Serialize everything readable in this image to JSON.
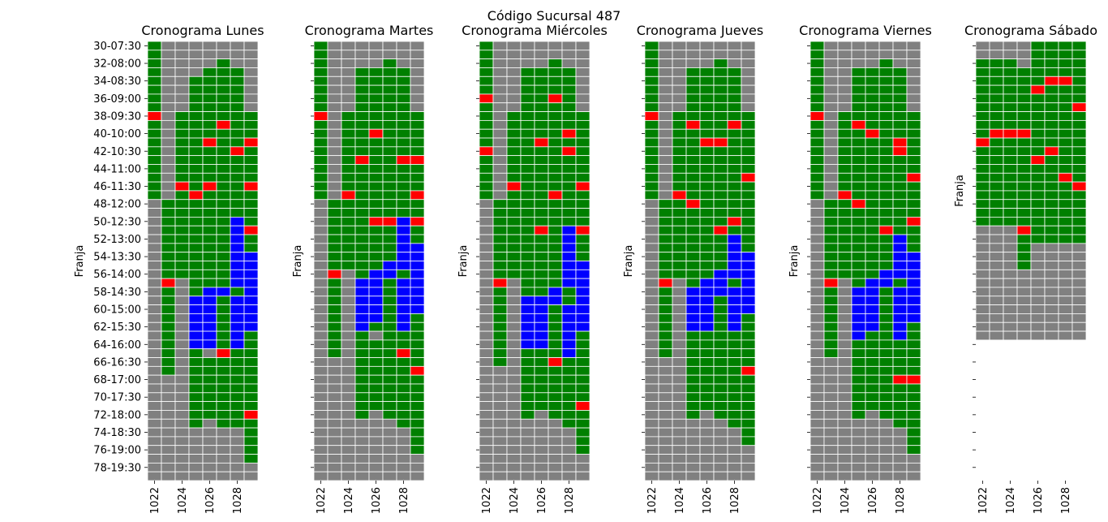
{
  "figure_title": "Código Sucursal 487",
  "chart_data": {
    "type": "heatmap",
    "suptitle": "Código Sucursal 487",
    "xlabel": "Empleado",
    "ylabel": "Franja",
    "employees": [
      1022,
      1023,
      1024,
      1025,
      1026,
      1027,
      1028,
      1029
    ],
    "x_tick_labels": [
      "1022",
      "1024",
      "1026",
      "1028"
    ],
    "y_tick_labels": [
      "30-07:30",
      "32-08:00",
      "34-08:30",
      "36-09:00",
      "38-09:30",
      "40-10:00",
      "42-10:30",
      "44-11:00",
      "46-11:30",
      "48-12:00",
      "50-12:30",
      "52-13:00",
      "54-13:30",
      "56-14:00",
      "58-14:30",
      "60-15:00",
      "62-15:30",
      "64-16:00",
      "66-16:30",
      "68-17:00",
      "70-17:30",
      "72-18:00",
      "74-18:30",
      "76-19:00",
      "78-19:30"
    ],
    "slots_start": 30,
    "slots_end": 79,
    "color_codes": {
      "G": "gray",
      "W": "green",
      "R": "red",
      "B": "blue"
    },
    "colors": {
      "G": "#808080",
      "W": "#008000",
      "R": "#ff0000",
      "B": "#0000ff"
    },
    "legend": "none",
    "panels": [
      {
        "title": "Cronograma Lunes",
        "grid": [
          "WGGGGGGG",
          "WGGGGGGG",
          "WGGGGWGG",
          "WGGGWWWG",
          "WGGWWWWG",
          "WGGWWWWG",
          "WGGWWWWG",
          "WGGWWWWG",
          "RGWWWWWW",
          "WGWWWRWW",
          "WGWWWWWW",
          "WGWWRWWR",
          "WGWWWWRW",
          "WGWWWWWW",
          "WGWWWWWW",
          "WGWWWWWW",
          "WGRWRWWR",
          "WGWRWWWW",
          "GWWWWWWW",
          "GWWWWWWW",
          "GWWWWWBW",
          "GWWWWWBR",
          "GWWWWWBW",
          "GWWWWWBW",
          "GWWWWWBB",
          "GWWWWWBB",
          "GWWWWWBB",
          "GRGWWWBB",
          "GWGWBBWB",
          "GWGBBWBB",
          "GWGBBWBB",
          "GWGBBWBB",
          "GWGBBWBB",
          "GWGBBWBW",
          "GWGBBWBW",
          "GWGWGRWW",
          "GWGWWWWW",
          "GWGWWWWW",
          "GGGWWWWW",
          "GGGWWWWW",
          "GGGWWWWW",
          "GGGWWWWW",
          "GGGWWWWR",
          "GGGWGWWW",
          "GGGGGGGW",
          "GGGGGGGW",
          "GGGGGGGW",
          "GGGGGGGW",
          "GGGGGGGG",
          "GGGGGGGG"
        ]
      },
      {
        "title": "Cronograma Martes",
        "grid": [
          "WGGGGGGG",
          "WGGGGGGG",
          "WGGGGWGG",
          "WGGWWWWG",
          "WGGWWWWG",
          "WGGWWWWG",
          "WGGWWWWG",
          "WGGWWWWG",
          "RGWWWWWW",
          "WGWWWWWW",
          "WGWWRWWW",
          "WGWWWWWW",
          "WGWWWWWW",
          "WGWRWWRR",
          "WGWWWWWW",
          "WGWWWWWW",
          "WGWWWWWW",
          "WGRWWWWR",
          "GWWWWWWW",
          "GWWWWWWW",
          "GWWWRRBR",
          "GWWWWWBW",
          "GWWWWWBW",
          "GWWWWWBB",
          "GWWWWWBB",
          "GWWWWBBB",
          "GRGWBBWB",
          "GWGBBWBB",
          "GWGBBWBB",
          "GWGBBWBB",
          "GWGBBWBB",
          "GWGBBWBW",
          "GWGBWWBW",
          "GWGWGWWW",
          "GWGWWWWW",
          "GWGWWWRW",
          "GGGWWWWW",
          "GGGWWWWR",
          "GGGWWWWW",
          "GGGWWWWW",
          "GGGWWWWW",
          "GGGWWWWW",
          "GGGWGWWW",
          "GGGGGGWW",
          "GGGGGGGW",
          "GGGGGGGW",
          "GGGGGGGW",
          "GGGGGGGG",
          "GGGGGGGG",
          "GGGGGGGG"
        ]
      },
      {
        "title": "Cronograma Miércoles",
        "grid": [
          "WGGGGGGG",
          "WGGGGGGG",
          "WGGGGWGG",
          "WGGWWWWG",
          "WGGWWWWG",
          "WGGWWWWG",
          "RGGWWRWG",
          "WGGWWWWG",
          "WGWWWWWW",
          "WGWWWWWW",
          "WGWWWWRW",
          "WGWWRWWW",
          "RGWWWWRW",
          "WGWWWWWW",
          "WGWWWWWW",
          "WGWWWWWW",
          "WGRWWWWR",
          "WGWWWRWW",
          "GWWWWWWW",
          "GWWWWWWW",
          "GWWWWWWW",
          "GWWWRWBR",
          "GWWWWWBW",
          "GWWWWWBW",
          "GWWWWWBW",
          "GWWWWWBB",
          "GWWWWWBB",
          "GRGWWWBB",
          "GWGWWBWB",
          "GWGBBBWB",
          "GWGBBWBB",
          "GWGBBWBB",
          "GWGBBWBB",
          "GWGBBWBW",
          "GWGBBWBW",
          "GWGWWWBW",
          "GWGWWRWW",
          "GGGWWWWW",
          "GGGWWWWW",
          "GGGWWWWW",
          "GGGWWWWW",
          "GGGWWWWR",
          "GGGWGWWW",
          "GGGGGGWW",
          "GGGGGGGW",
          "GGGGGGGW",
          "GGGGGGGW",
          "GGGGGGGG",
          "GGGGGGGG",
          "GGGGGGGG"
        ]
      },
      {
        "title": "Cronograma Jueves",
        "grid": [
          "WGGGGGGG",
          "WGGGGGGG",
          "WGGGGWGG",
          "WGGWWWWG",
          "WGGWWWWG",
          "WGGWWWWG",
          "WGGWWWWG",
          "WGGWWWWG",
          "RGWWWWWW",
          "WGWRWWRW",
          "WGWWWWWW",
          "WGWWRRWW",
          "WGWWWWWW",
          "WGWWWWWW",
          "WGWWWWWW",
          "WGWWWWWR",
          "WGWWWWWW",
          "WGRWWWWW",
          "GWWRWWWW",
          "GWWWWWWW",
          "GWWWWWRW",
          "GWWWWRWW",
          "GWWWWWBW",
          "GWWWWWBW",
          "GWWWWWBB",
          "GWWWWWBB",
          "GWWWWBBB",
          "GRGWBBWB",
          "GWGBBBBB",
          "GWGBBWBB",
          "GWGBBWBB",
          "GWGBBWBW",
          "GWGBBWBW",
          "GWGWWWWW",
          "GWGWWWWW",
          "GWGWWWWW",
          "GGGWWWWW",
          "GGGWWWWR",
          "GGGWWWWW",
          "GGGWWWWW",
          "GGGWWWWW",
          "GGGWWWWW",
          "GGGWGWWW",
          "GGGGGGWW",
          "GGGGGGGW",
          "GGGGGGGW",
          "GGGGGGGG",
          "GGGGGGGG",
          "GGGGGGGG",
          "GGGGGGGG"
        ]
      },
      {
        "title": "Cronograma Viernes",
        "grid": [
          "WGGGGGGG",
          "WGGGGGGG",
          "WGGGGWGG",
          "WGGWWWWG",
          "WGGWWWWG",
          "WGGWWWWG",
          "WGGWWWWG",
          "WGGWWWWG",
          "RGWWWWWW",
          "WGWRWWWW",
          "WGWWRWWW",
          "WGWWWWRW",
          "WGWWWWRW",
          "WGWWWWWW",
          "WGWWWWWW",
          "WGWWWWWR",
          "WGWWWWWW",
          "WGRWWWWW",
          "GWWRWWWW",
          "GWWWWWWW",
          "GWWWWWWR",
          "GWWWWRWW",
          "GWWWWWBW",
          "GWWWWWBW",
          "GWWWWWBB",
          "GWWWWWBB",
          "GWWWWBBB",
          "GRGWBBWB",
          "GWGBBWBB",
          "GWGBBWBB",
          "GWGBBWBB",
          "GWGBBWBB",
          "GWGBBWBW",
          "GWGBWWBW",
          "GWGWWWWW",
          "GWGWWWWW",
          "GGGWWWWW",
          "GGGWWWWW",
          "GGGWWWRR",
          "GGGWWWWW",
          "GGGWWWWW",
          "GGGWWWWW",
          "GGGWGWWW",
          "GGGGGGWW",
          "GGGGGGGW",
          "GGGGGGGW",
          "GGGGGGGW",
          "GGGGGGGG",
          "GGGGGGGG",
          "GGGGGGGG"
        ]
      },
      {
        "title": "Cronograma Sábado",
        "grid": [
          "GGGGWWWW",
          "GGGGWWWW",
          "WWWGWWWW",
          "WWWWWWWW",
          "WWWWWRRW",
          "WWWWRWWW",
          "WWWWWWWW",
          "WWWWWWWR",
          "WWWWWWWW",
          "WWWWWWWW",
          "WRRRWWWW",
          "RWWWWWWW",
          "WWWWWRWW",
          "WWWWRWWW",
          "WWWWWWWW",
          "WWWWWWRW",
          "WWWWWWWR",
          "WWWWWWWW",
          "WWWWWWWW",
          "WWWWWWWW",
          "WWWWWWWW",
          "GGGRWWWW",
          "GGGWWWWW",
          "GGGWGGGG",
          "GGGWGGGG",
          "GGGWGGGG",
          "GGGGGGGG",
          "GGGGGGGG",
          "GGGGGGGG",
          "GGGGGGGG",
          "GGGGGGGG",
          "GGGGGGGG",
          "GGGGGGGG",
          "GGGGGGGG"
        ]
      }
    ]
  }
}
